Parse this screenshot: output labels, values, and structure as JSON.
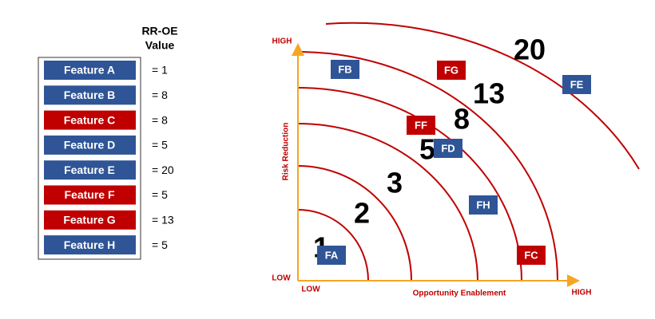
{
  "table": {
    "header": [
      "RR-OE",
      "Value"
    ],
    "rows": [
      {
        "label": "Feature A",
        "value": "= 1",
        "color": "#2f5597"
      },
      {
        "label": "Feature B",
        "value": "= 8",
        "color": "#2f5597"
      },
      {
        "label": "Feature C",
        "value": "= 8",
        "color": "#c00000"
      },
      {
        "label": "Feature D",
        "value": "= 5",
        "color": "#2f5597"
      },
      {
        "label": "Feature E",
        "value": "= 20",
        "color": "#2f5597"
      },
      {
        "label": "Feature F",
        "value": "= 5",
        "color": "#c00000"
      },
      {
        "label": "Feature G",
        "value": "= 13",
        "color": "#c00000"
      },
      {
        "label": "Feature H",
        "value": "= 5",
        "color": "#2f5597"
      }
    ]
  },
  "diagram": {
    "y_high": "HIGH",
    "y_low": "LOW",
    "x_low": "LOW",
    "x_high": "HIGH",
    "x_label": "Opportunity Enablement",
    "y_label": "Risk Reduction",
    "levels": [
      "1",
      "2",
      "3",
      "5",
      "8",
      "13",
      "20"
    ],
    "boxes": [
      {
        "label": "FA",
        "color": "#2f5597"
      },
      {
        "label": "FB",
        "color": "#2f5597"
      },
      {
        "label": "FC",
        "color": "#c00000"
      },
      {
        "label": "FD",
        "color": "#2f5597"
      },
      {
        "label": "FE",
        "color": "#2f5597"
      },
      {
        "label": "FF",
        "color": "#c00000"
      },
      {
        "label": "FG",
        "color": "#c00000"
      },
      {
        "label": "FH",
        "color": "#2f5597"
      }
    ]
  }
}
